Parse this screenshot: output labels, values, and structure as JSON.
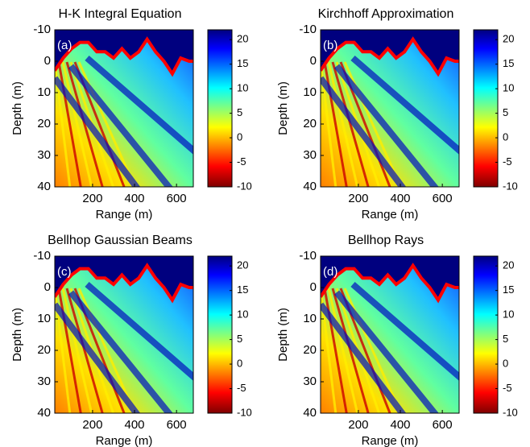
{
  "chart_data": [
    {
      "type": "heatmap",
      "title": "H-K Integral Equation",
      "panel_label": "(a)",
      "xlabel": "Range (m)",
      "ylabel": "Depth (m)",
      "xlim": [
        20,
        680
      ],
      "xticks": [
        200,
        400,
        600
      ],
      "ylim": [
        -10,
        40
      ],
      "yticks": [
        -10,
        0,
        10,
        20,
        30,
        40
      ],
      "clim": [
        -10,
        22
      ],
      "cticks": [
        -10,
        -5,
        0,
        5,
        10,
        15,
        20
      ],
      "colormap": "jet-reversed",
      "surface": {
        "color": "#ff0000",
        "x": [
          20,
          60,
          100,
          140,
          180,
          220,
          260,
          300,
          340,
          380,
          420,
          460,
          500,
          540,
          580,
          620,
          660,
          680
        ],
        "values": [
          3,
          -1,
          -4,
          -6,
          -6,
          -3,
          -3,
          -1,
          -4,
          -1,
          -3,
          -7,
          -3,
          0,
          4,
          -1,
          0,
          0
        ]
      }
    },
    {
      "type": "heatmap",
      "title": "Kirchhoff Approximation",
      "panel_label": "(b)",
      "xlabel": "Range (m)",
      "ylabel": "Depth (m)",
      "xlim": [
        20,
        680
      ],
      "xticks": [
        200,
        400,
        600
      ],
      "ylim": [
        -10,
        40
      ],
      "yticks": [
        -10,
        0,
        10,
        20,
        30,
        40
      ],
      "clim": [
        -10,
        22
      ],
      "cticks": [
        -10,
        -5,
        0,
        5,
        10,
        15,
        20
      ],
      "colormap": "jet-reversed",
      "surface": {
        "color": "#ff0000",
        "x": [
          20,
          60,
          100,
          140,
          180,
          220,
          260,
          300,
          340,
          380,
          420,
          460,
          500,
          540,
          580,
          620,
          660,
          680
        ],
        "values": [
          3,
          -1,
          -4,
          -6,
          -6,
          -3,
          -3,
          -1,
          -4,
          -1,
          -3,
          -7,
          -3,
          0,
          4,
          -1,
          0,
          0
        ]
      }
    },
    {
      "type": "heatmap",
      "title": "Bellhop Gaussian Beams",
      "panel_label": "(c)",
      "xlabel": "Range (m)",
      "ylabel": "Depth (m)",
      "xlim": [
        20,
        680
      ],
      "xticks": [
        200,
        400,
        600
      ],
      "ylim": [
        -10,
        40
      ],
      "yticks": [
        -10,
        0,
        10,
        20,
        30,
        40
      ],
      "clim": [
        -10,
        22
      ],
      "cticks": [
        -10,
        -5,
        0,
        5,
        10,
        15,
        20
      ],
      "colormap": "jet-reversed",
      "surface": {
        "color": "#ff0000",
        "x": [
          20,
          60,
          100,
          140,
          180,
          220,
          260,
          300,
          340,
          380,
          420,
          460,
          500,
          540,
          580,
          620,
          660,
          680
        ],
        "values": [
          3,
          -1,
          -4,
          -6,
          -6,
          -3,
          -3,
          -1,
          -4,
          -1,
          -3,
          -7,
          -3,
          0,
          4,
          -1,
          0,
          0
        ]
      }
    },
    {
      "type": "heatmap",
      "title": "Bellhop Rays",
      "panel_label": "(d)",
      "xlabel": "Range (m)",
      "ylabel": "Depth (m)",
      "xlim": [
        20,
        680
      ],
      "xticks": [
        200,
        400,
        600
      ],
      "ylim": [
        -10,
        40
      ],
      "yticks": [
        -10,
        0,
        10,
        20,
        30,
        40
      ],
      "clim": [
        -10,
        22
      ],
      "cticks": [
        -10,
        -5,
        0,
        5,
        10,
        15,
        20
      ],
      "colormap": "jet-reversed",
      "surface": {
        "color": "#ff0000",
        "x": [
          20,
          60,
          100,
          140,
          180,
          220,
          260,
          300,
          340,
          380,
          420,
          460,
          500,
          540,
          580,
          620,
          660,
          680
        ],
        "values": [
          3,
          -1,
          -4,
          -6,
          -6,
          -3,
          -3,
          -1,
          -4,
          -1,
          -3,
          -7,
          -3,
          0,
          4,
          -1,
          0,
          0
        ]
      }
    }
  ]
}
